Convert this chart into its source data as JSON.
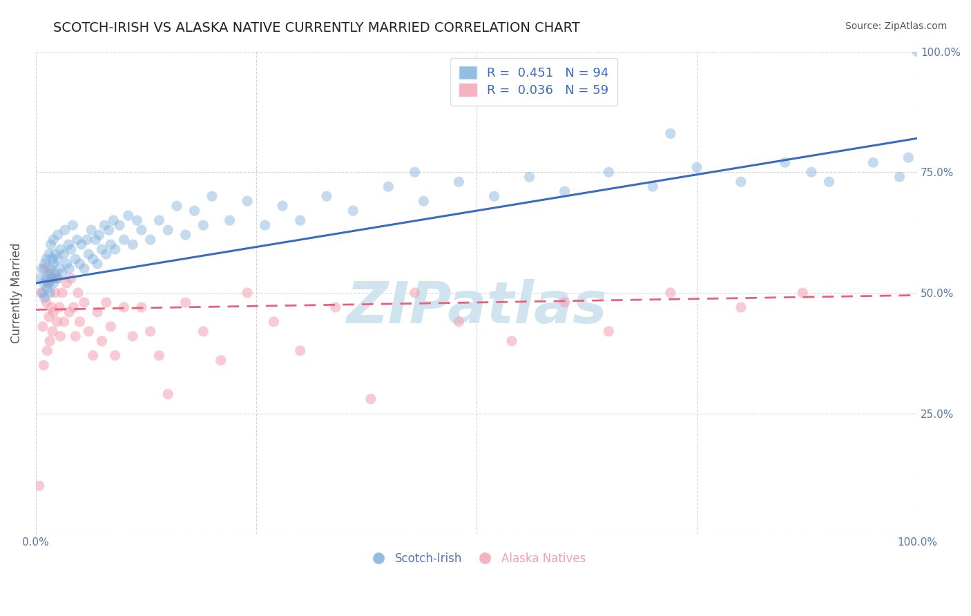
{
  "title": "SCOTCH-IRISH VS ALASKA NATIVE CURRENTLY MARRIED CORRELATION CHART",
  "source": "Source: ZipAtlas.com",
  "ylabel": "Currently Married",
  "xlim": [
    0.0,
    1.0
  ],
  "ylim": [
    0.0,
    1.0
  ],
  "xticks": [
    0.0,
    0.25,
    0.5,
    0.75,
    1.0
  ],
  "yticks": [
    0.0,
    0.25,
    0.5,
    0.75,
    1.0
  ],
  "xticklabels_bottom": [
    "0.0%",
    "",
    "",
    "",
    "100.0%"
  ],
  "right_yticklabels": [
    "",
    "25.0%",
    "50.0%",
    "75.0%",
    "100.0%"
  ],
  "scatter_blue_color": "#7aaddc",
  "scatter_pink_color": "#f4a0b0",
  "line_blue_color": "#3a6bbf",
  "line_pink_color": "#e8607a",
  "watermark_color": "#d0e4f0",
  "legend_R1": "0.451",
  "legend_N1": "94",
  "legend_R2": "0.036",
  "legend_N2": "59",
  "title_fontsize": 14,
  "axis_tick_color": "#5577aa",
  "grid_color": "#cccccc",
  "background_color": "#ffffff",
  "blue_regression_x0": 0.0,
  "blue_regression_y0": 0.52,
  "blue_regression_x1": 1.0,
  "blue_regression_y1": 0.82,
  "pink_regression_x0": 0.0,
  "pink_regression_y0": 0.465,
  "pink_regression_x1": 1.0,
  "pink_regression_y1": 0.495,
  "blue_scatter_x": [
    0.005,
    0.007,
    0.008,
    0.009,
    0.01,
    0.01,
    0.012,
    0.012,
    0.013,
    0.014,
    0.015,
    0.015,
    0.016,
    0.017,
    0.017,
    0.018,
    0.019,
    0.02,
    0.02,
    0.02,
    0.022,
    0.022,
    0.024,
    0.025,
    0.025,
    0.027,
    0.028,
    0.03,
    0.032,
    0.033,
    0.035,
    0.037,
    0.038,
    0.04,
    0.042,
    0.045,
    0.047,
    0.05,
    0.052,
    0.055,
    0.058,
    0.06,
    0.063,
    0.065,
    0.068,
    0.07,
    0.072,
    0.075,
    0.078,
    0.08,
    0.083,
    0.085,
    0.088,
    0.09,
    0.095,
    0.1,
    0.105,
    0.11,
    0.115,
    0.12,
    0.13,
    0.14,
    0.15,
    0.16,
    0.17,
    0.18,
    0.19,
    0.2,
    0.22,
    0.24,
    0.26,
    0.28,
    0.3,
    0.33,
    0.36,
    0.4,
    0.44,
    0.48,
    0.52,
    0.56,
    0.6,
    0.65,
    0.7,
    0.75,
    0.8,
    0.85,
    0.88,
    0.9,
    0.95,
    0.98,
    0.99,
    1.0,
    0.72,
    0.43
  ],
  "blue_scatter_y": [
    0.53,
    0.55,
    0.5,
    0.52,
    0.56,
    0.49,
    0.53,
    0.57,
    0.51,
    0.54,
    0.52,
    0.58,
    0.5,
    0.55,
    0.6,
    0.53,
    0.57,
    0.52,
    0.56,
    0.61,
    0.54,
    0.58,
    0.53,
    0.57,
    0.62,
    0.55,
    0.59,
    0.54,
    0.58,
    0.63,
    0.56,
    0.6,
    0.55,
    0.59,
    0.64,
    0.57,
    0.61,
    0.56,
    0.6,
    0.55,
    0.61,
    0.58,
    0.63,
    0.57,
    0.61,
    0.56,
    0.62,
    0.59,
    0.64,
    0.58,
    0.63,
    0.6,
    0.65,
    0.59,
    0.64,
    0.61,
    0.66,
    0.6,
    0.65,
    0.63,
    0.61,
    0.65,
    0.63,
    0.68,
    0.62,
    0.67,
    0.64,
    0.7,
    0.65,
    0.69,
    0.64,
    0.68,
    0.65,
    0.7,
    0.67,
    0.72,
    0.69,
    0.73,
    0.7,
    0.74,
    0.71,
    0.75,
    0.72,
    0.76,
    0.73,
    0.77,
    0.75,
    0.73,
    0.77,
    0.74,
    0.78,
    1.0,
    0.83,
    0.75
  ],
  "pink_scatter_x": [
    0.004,
    0.006,
    0.008,
    0.009,
    0.01,
    0.012,
    0.013,
    0.014,
    0.015,
    0.016,
    0.017,
    0.018,
    0.019,
    0.02,
    0.02,
    0.022,
    0.024,
    0.025,
    0.027,
    0.028,
    0.03,
    0.032,
    0.035,
    0.038,
    0.04,
    0.043,
    0.045,
    0.048,
    0.05,
    0.055,
    0.06,
    0.065,
    0.07,
    0.075,
    0.08,
    0.085,
    0.09,
    0.1,
    0.11,
    0.12,
    0.13,
    0.14,
    0.15,
    0.17,
    0.19,
    0.21,
    0.24,
    0.27,
    0.3,
    0.34,
    0.38,
    0.43,
    0.48,
    0.54,
    0.6,
    0.65,
    0.72,
    0.8,
    0.87
  ],
  "pink_scatter_y": [
    0.1,
    0.5,
    0.43,
    0.35,
    0.55,
    0.48,
    0.38,
    0.52,
    0.45,
    0.4,
    0.54,
    0.47,
    0.42,
    0.53,
    0.46,
    0.5,
    0.44,
    0.53,
    0.47,
    0.41,
    0.5,
    0.44,
    0.52,
    0.46,
    0.53,
    0.47,
    0.41,
    0.5,
    0.44,
    0.48,
    0.42,
    0.37,
    0.46,
    0.4,
    0.48,
    0.43,
    0.37,
    0.47,
    0.41,
    0.47,
    0.42,
    0.37,
    0.29,
    0.48,
    0.42,
    0.36,
    0.5,
    0.44,
    0.38,
    0.47,
    0.28,
    0.5,
    0.44,
    0.4,
    0.48,
    0.42,
    0.5,
    0.47,
    0.5
  ]
}
